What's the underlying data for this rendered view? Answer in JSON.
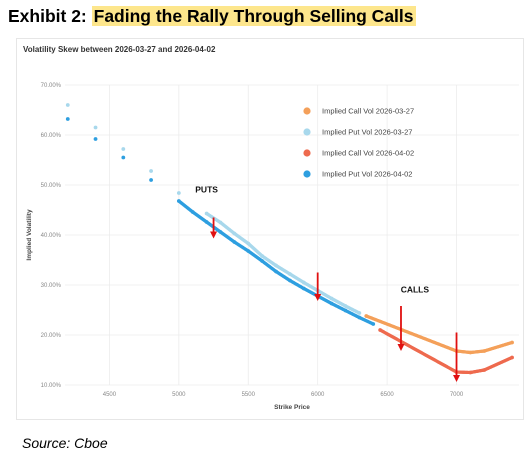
{
  "exhibit": {
    "prefix": "Exhibit 2: ",
    "title": "Fading the Rally Through Selling Calls"
  },
  "source": "Source: Cboe",
  "chart_data": {
    "type": "scatter",
    "title": "Volatility Skew between 2026-03-27 and 2026-04-02",
    "xlabel": "Strike Price",
    "ylabel": "Implied Volatility",
    "xlim": [
      4180,
      7450
    ],
    "ylim": [
      10,
      70
    ],
    "x_ticks": [
      4500,
      5000,
      5500,
      6000,
      6500,
      7000
    ],
    "x_tick_labels": [
      "4500",
      "5000",
      "5500",
      "6000",
      "6500",
      "7000"
    ],
    "y_ticks": [
      10,
      20,
      30,
      40,
      50,
      60,
      70
    ],
    "y_tick_labels": [
      "10.00%",
      "20.00%",
      "30.00%",
      "40.00%",
      "50.00%",
      "60.00%",
      "70.00%"
    ],
    "grid": true,
    "legend_position": "top-right",
    "series": [
      {
        "name": "Implied Call Vol 2026-03-27",
        "color": "#f4a05a",
        "x": [
          6350,
          7000,
          7100,
          7200,
          7400
        ],
        "y": [
          23.8,
          16.8,
          16.5,
          16.8,
          18.5
        ]
      },
      {
        "name": "Implied Put Vol 2026-03-27",
        "color": "#a8d8ec",
        "x": [
          4200,
          4400,
          4600,
          4800,
          5000,
          5200,
          5300,
          5400,
          5500,
          5600,
          5700,
          5800,
          5900,
          6000,
          6100,
          6200,
          6300
        ],
        "y": [
          66.0,
          61.5,
          57.2,
          52.8,
          48.4,
          44.3,
          42.5,
          40.3,
          38.3,
          35.8,
          33.9,
          32.2,
          30.5,
          28.9,
          27.3,
          25.8,
          24.4
        ]
      },
      {
        "name": "Implied Call Vol 2026-04-02",
        "color": "#ee6a4e",
        "x": [
          6450,
          7000,
          7100,
          7200,
          7400
        ],
        "y": [
          21.0,
          12.6,
          12.5,
          13.0,
          15.5
        ]
      },
      {
        "name": "Implied Put Vol 2026-04-02",
        "color": "#2e9fe0",
        "x": [
          4200,
          4400,
          4600,
          4800,
          5000,
          5100,
          5200,
          5300,
          5400,
          5500,
          5600,
          5700,
          5800,
          5900,
          6000,
          6100,
          6200,
          6300,
          6400
        ],
        "y": [
          63.2,
          59.2,
          55.5,
          51.0,
          46.8,
          44.6,
          42.6,
          40.6,
          38.6,
          36.8,
          34.8,
          32.7,
          30.9,
          29.3,
          27.8,
          26.3,
          24.9,
          23.5,
          22.2
        ]
      }
    ],
    "annotations": [
      {
        "text": "PUTS",
        "x": 5200,
        "y": 48.5
      },
      {
        "text": "CALLS",
        "x": 6700,
        "y": 28.5
      }
    ],
    "arrows": [
      {
        "x": 5250,
        "y_from": 43.5,
        "y_to": 39.5
      },
      {
        "x": 6000,
        "y_from": 32.5,
        "y_to": 27.0
      },
      {
        "x": 6600,
        "y_from": 25.8,
        "y_to": 17.0
      },
      {
        "x": 7000,
        "y_from": 20.5,
        "y_to": 10.8
      }
    ]
  }
}
